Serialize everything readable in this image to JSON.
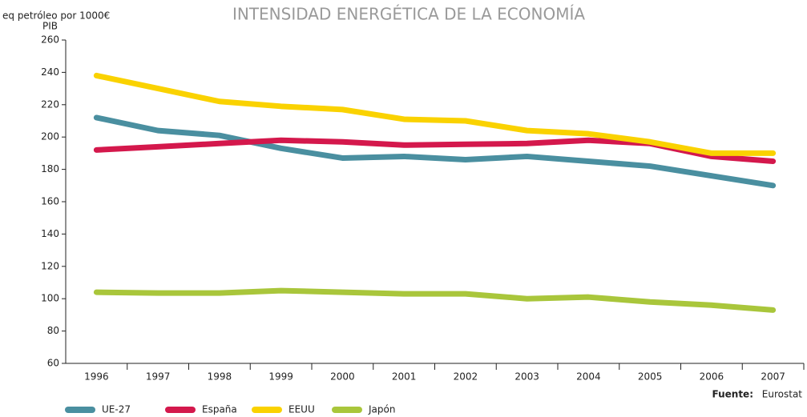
{
  "chart_data": {
    "type": "line",
    "title": "INTENSIDAD ENERGÉTICA DE LA ECONOMÍA",
    "y_label": [
      "eq petróleo por 1000€",
      "PIB"
    ],
    "categories": [
      "1996",
      "1997",
      "1998",
      "1999",
      "2000",
      "2001",
      "2002",
      "2003",
      "2004",
      "2005",
      "2006",
      "2007"
    ],
    "series": [
      {
        "name": "UE-27",
        "color": "#4a8fa0",
        "values": [
          212,
          204,
          201,
          193,
          187,
          188,
          186,
          188,
          185,
          182,
          176,
          170
        ]
      },
      {
        "name": "España",
        "color": "#d4184c",
        "values": [
          192,
          194,
          196,
          198,
          197,
          195,
          195.5,
          196,
          198,
          196,
          188,
          185
        ]
      },
      {
        "name": "EEUU",
        "color": "#fad200",
        "values": [
          238,
          230,
          222,
          219,
          217,
          211,
          210,
          204,
          202,
          197,
          190,
          190
        ]
      },
      {
        "name": "Japón",
        "color": "#a9c63b",
        "values": [
          104,
          103.5,
          103.5,
          105,
          104,
          103,
          103,
          100,
          101,
          98,
          96,
          93
        ]
      }
    ],
    "ylim": [
      60,
      260
    ],
    "yticks": [
      60,
      80,
      100,
      120,
      140,
      160,
      180,
      200,
      220,
      240,
      260
    ],
    "source_label": "Fuente:",
    "source": "Eurostat"
  }
}
